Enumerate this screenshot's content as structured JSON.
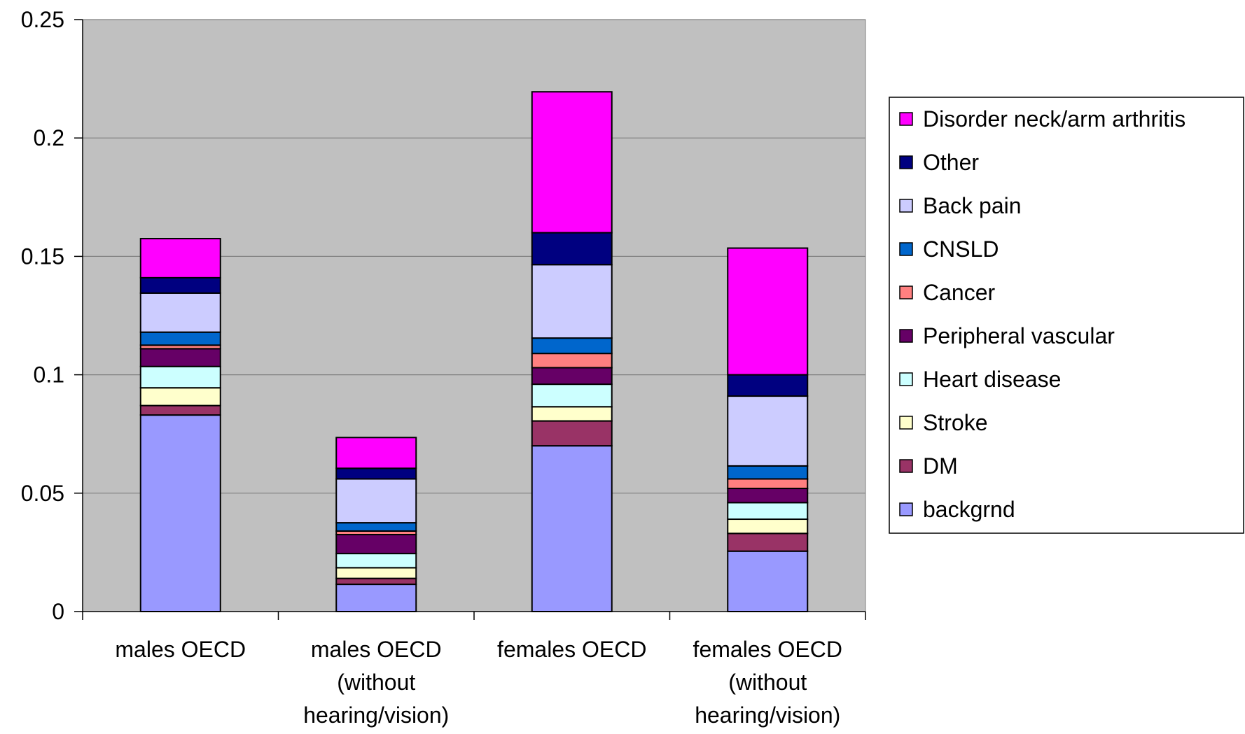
{
  "chart_data": {
    "type": "bar",
    "stacked": true,
    "categories": [
      [
        "males OECD"
      ],
      [
        "males OECD",
        "(without",
        "hearing/vision)"
      ],
      [
        "females OECD"
      ],
      [
        "females OECD",
        "(without",
        "hearing/vision)"
      ]
    ],
    "series": [
      {
        "name": "backgrnd",
        "color": "#9999FF",
        "values": [
          0.083,
          0.0115,
          0.07,
          0.0255
        ]
      },
      {
        "name": "DM",
        "color": "#993366",
        "values": [
          0.004,
          0.0025,
          0.0105,
          0.0075
        ]
      },
      {
        "name": "Stroke",
        "color": "#FFFFCC",
        "values": [
          0.0075,
          0.0045,
          0.006,
          0.006
        ]
      },
      {
        "name": "Heart disease",
        "color": "#CCFFFF",
        "values": [
          0.009,
          0.006,
          0.0095,
          0.007
        ]
      },
      {
        "name": "Peripheral vascular",
        "color": "#660066",
        "values": [
          0.0075,
          0.008,
          0.007,
          0.006
        ]
      },
      {
        "name": "Cancer",
        "color": "#FF8080",
        "values": [
          0.0015,
          0.0015,
          0.006,
          0.004
        ]
      },
      {
        "name": "CNSLD",
        "color": "#0066CC",
        "values": [
          0.0055,
          0.0035,
          0.0065,
          0.0055
        ]
      },
      {
        "name": "Back pain",
        "color": "#CCCCFF",
        "values": [
          0.0165,
          0.0185,
          0.031,
          0.0295
        ]
      },
      {
        "name": "Other",
        "color": "#000080",
        "values": [
          0.0065,
          0.0045,
          0.0135,
          0.009
        ]
      },
      {
        "name": "Disorder neck/arm arthritis",
        "color": "#FF00FF",
        "values": [
          0.0165,
          0.013,
          0.0595,
          0.0535
        ]
      }
    ],
    "ylim": [
      0,
      0.25
    ],
    "yticks": [
      "0",
      "0.05",
      "0.1",
      "0.15",
      "0.2",
      "0.25"
    ],
    "ytick_values": [
      0,
      0.05,
      0.1,
      0.15,
      0.2,
      0.25
    ],
    "title": "",
    "xlabel": "",
    "ylabel": "",
    "grid": true,
    "plot_background": "#C0C0C0",
    "legend_position": "right",
    "legend_order": "reverse"
  }
}
